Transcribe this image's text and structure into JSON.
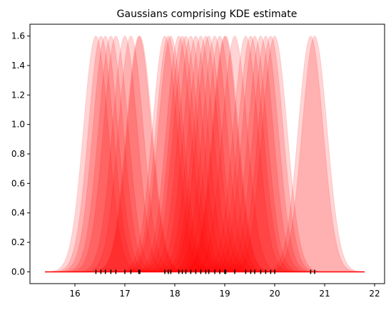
{
  "chart_data": {
    "type": "area",
    "title": "Gaussians comprising KDE estimate",
    "xlabel": "",
    "ylabel": "",
    "xlim": [
      15.1,
      22.2
    ],
    "ylim": [
      -0.08,
      1.68
    ],
    "grid": false,
    "legend": "none",
    "x_ticks": [
      16,
      17,
      18,
      19,
      20,
      21,
      22
    ],
    "y_ticks": [
      0.0,
      0.2,
      0.4,
      0.6,
      0.8,
      1.0,
      1.2,
      1.4,
      1.6
    ],
    "x_tick_labels": [
      "16",
      "17",
      "18",
      "19",
      "20",
      "21",
      "22"
    ],
    "y_tick_labels": [
      "0.0",
      "0.2",
      "0.4",
      "0.6",
      "0.8",
      "1.0",
      "1.2",
      "1.4",
      "1.6"
    ],
    "kernel_peak": 1.6,
    "kernel_sigma": 0.25,
    "baseline_range": [
      15.4,
      21.8
    ],
    "color": "#ff0000",
    "samples": [
      16.42,
      16.52,
      16.61,
      16.72,
      16.82,
      17.0,
      17.12,
      17.28,
      17.3,
      17.8,
      17.87,
      17.92,
      18.08,
      18.15,
      18.22,
      18.32,
      18.42,
      18.52,
      18.62,
      18.68,
      18.8,
      18.9,
      19.0,
      19.02,
      19.2,
      19.42,
      19.52,
      19.6,
      19.72,
      19.82,
      19.92,
      20.0,
      20.72,
      20.8
    ]
  }
}
